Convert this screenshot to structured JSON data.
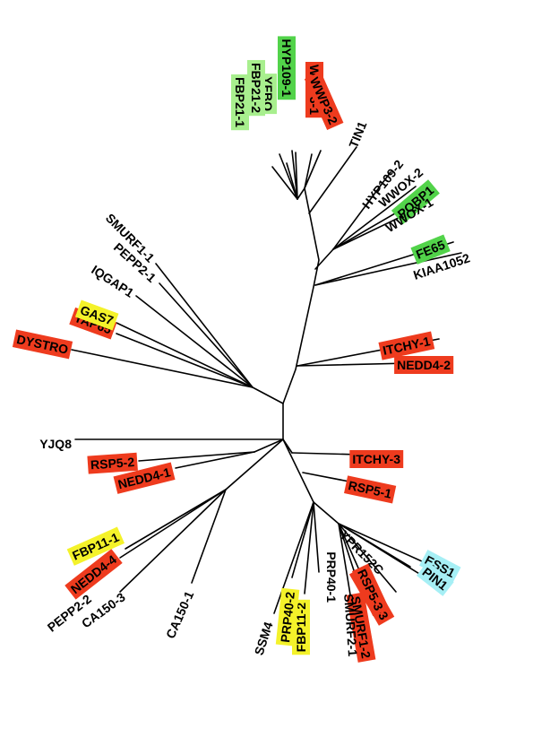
{
  "colors": {
    "red": "#ee3b1e",
    "green": "#52d34a",
    "lightgreen": "#a8ef8e",
    "yellow": "#f4f22a",
    "cyan": "#a6eff5",
    "none": "none"
  },
  "labels": {
    "hyp109_1": {
      "text": "HYP109-1",
      "color": "green"
    },
    "yfbo": {
      "text": "YFBO",
      "color": "lightgreen"
    },
    "fbp21_2": {
      "text": "FBP21-2",
      "color": "lightgreen"
    },
    "fbp21_1": {
      "text": "FBP21-1",
      "color": "lightgreen"
    },
    "wwp3_1": {
      "text": "WWP3-1",
      "color": "red"
    },
    "wwp3_2": {
      "text": "WWP3-2",
      "color": "red"
    },
    "tin1": {
      "text": "TIN1",
      "color": "none"
    },
    "hyp109_2": {
      "text": "HYP109-2",
      "color": "none"
    },
    "wwox_2": {
      "text": "WWOX-2",
      "color": "none"
    },
    "pqbp1": {
      "text": "PQBP1",
      "color": "green"
    },
    "wwox_1": {
      "text": "WWOX-1",
      "color": "none"
    },
    "fe65": {
      "text": "FE65",
      "color": "green"
    },
    "kiaa1052": {
      "text": "KIAA1052",
      "color": "none"
    },
    "itchy_1": {
      "text": "ITCHY-1",
      "color": "red"
    },
    "nedd4_2": {
      "text": "NEDD4-2",
      "color": "red"
    },
    "itchy_3": {
      "text": "ITCHY-3",
      "color": "red"
    },
    "rsp5_1": {
      "text": "RSP5-1",
      "color": "red"
    },
    "ess1": {
      "text": "ESS1",
      "color": "cyan"
    },
    "pin1": {
      "text": "PIN1",
      "color": "cyan"
    },
    "ypr152c": {
      "text": "YPR152C",
      "color": "none"
    },
    "nedd4_3": {
      "text": "NEDD4-3",
      "color": "red"
    },
    "rsp5_3": {
      "text": "RSP5-3",
      "color": "red"
    },
    "smurf1_2": {
      "text": "SMURF1-2",
      "color": "red"
    },
    "smurf2_1": {
      "text": "SMURF2-1",
      "color": "none"
    },
    "prp40_1": {
      "text": "PRP40-1",
      "color": "none"
    },
    "fbp11_2": {
      "text": "FBP11-2",
      "color": "yellow"
    },
    "prp40_2": {
      "text": "PRP40-2",
      "color": "yellow"
    },
    "ssm4": {
      "text": "SSM4",
      "color": "none"
    },
    "ca150_1": {
      "text": "CA150-1",
      "color": "none"
    },
    "ca150_3": {
      "text": "CA150-3",
      "color": "none"
    },
    "pepp2_2": {
      "text": "PEPP2-2",
      "color": "none"
    },
    "nedd4_4": {
      "text": "NEDD4-4",
      "color": "red"
    },
    "fbp11_1": {
      "text": "FBP11-1",
      "color": "yellow"
    },
    "nedd4_1": {
      "text": "NEDD4-1",
      "color": "red"
    },
    "rsp5_2": {
      "text": "RSP5-2",
      "color": "red"
    },
    "yjq8": {
      "text": "YJQ8",
      "color": "none"
    },
    "dystro": {
      "text": "DYSTRO",
      "color": "red"
    },
    "yap65": {
      "text": "YAP65",
      "color": "red"
    },
    "gas7": {
      "text": "GAS7",
      "color": "yellow"
    },
    "iqgap1": {
      "text": "IQGAP1",
      "color": "none"
    },
    "pepp2_1": {
      "text": "PEPP2-1",
      "color": "none"
    },
    "smurf1_1": {
      "text": "SMURF1-1",
      "color": "none"
    }
  }
}
